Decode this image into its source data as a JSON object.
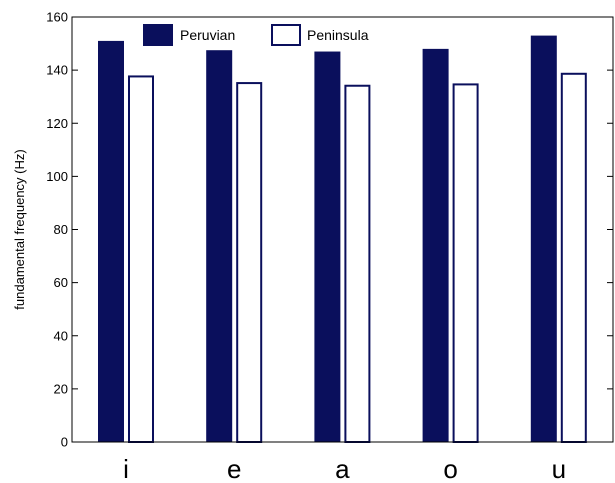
{
  "chart_data": {
    "type": "bar",
    "categories": [
      "i",
      "e",
      "a",
      "o",
      "u"
    ],
    "series": [
      {
        "name": "Peruvian",
        "values": [
          151,
          147.5,
          147,
          148,
          153
        ],
        "style": "filled"
      },
      {
        "name": "Peninsula",
        "values": [
          138,
          135.5,
          134.5,
          135,
          139
        ],
        "style": "outline"
      }
    ],
    "title": "",
    "xlabel": "",
    "ylabel": "fundamental frequency (Hz)",
    "ylim": [
      0,
      160
    ],
    "yticks": [
      0,
      20,
      40,
      60,
      80,
      100,
      120,
      140,
      160
    ],
    "grid": false,
    "legend_position": "top",
    "colors": {
      "bar": "#0a0f5c",
      "axis": "#000000"
    }
  }
}
